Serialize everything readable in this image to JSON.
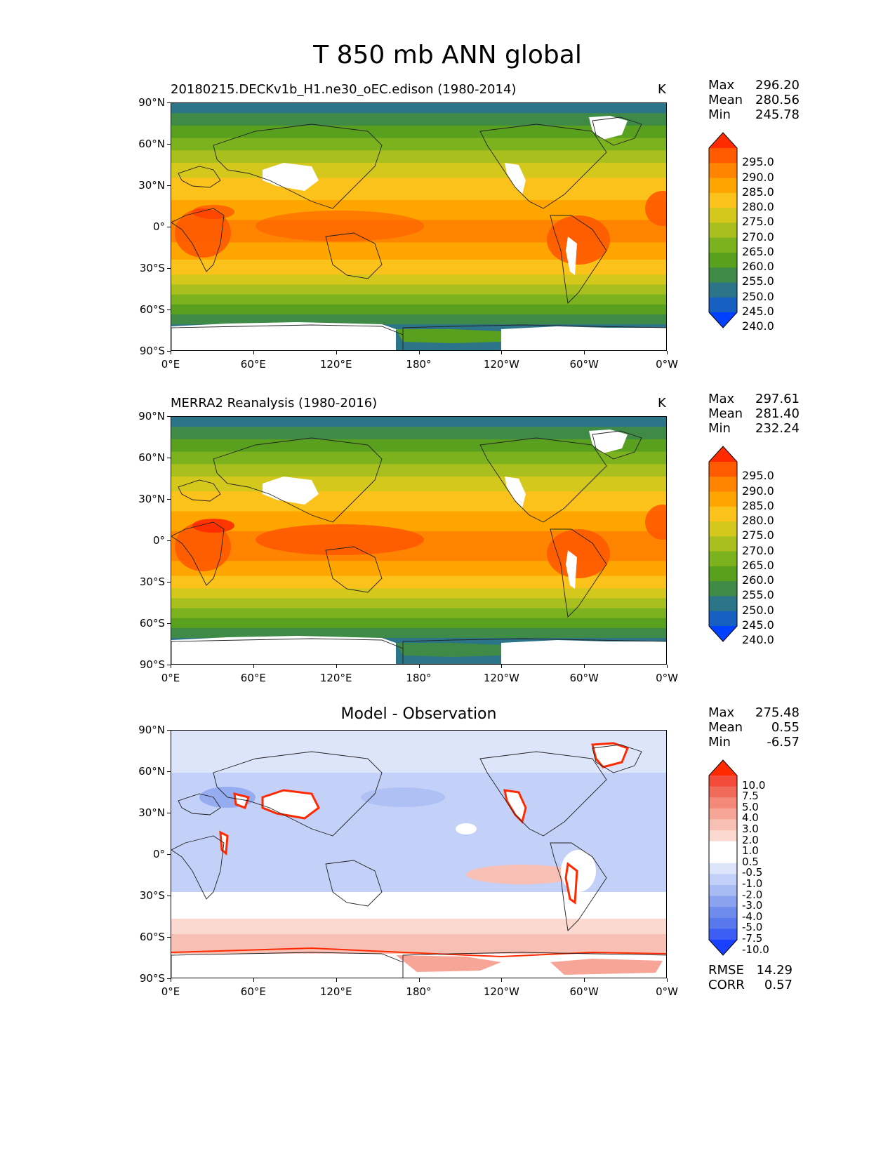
{
  "title": "T 850 mb ANN global",
  "units": "K",
  "lat_ticks": [
    "90°N",
    "60°N",
    "30°N",
    "0°",
    "30°S",
    "60°S",
    "90°S"
  ],
  "lon_ticks": [
    "0°E",
    "60°E",
    "120°E",
    "180°",
    "120°W",
    "60°W",
    "0°W"
  ],
  "panels": [
    {
      "subtitle": "20180215.DECKv1b_H1.ne30_oEC.edison (1980-2014)",
      "stats": {
        "max_label": "Max",
        "max": "296.20",
        "mean_label": "Mean",
        "mean": "280.56",
        "min_label": "Min",
        "min": "245.78"
      },
      "colorbar": [
        "295.0",
        "290.0",
        "285.0",
        "280.0",
        "275.0",
        "270.0",
        "265.0",
        "260.0",
        "255.0",
        "250.0",
        "245.0",
        "240.0"
      ]
    },
    {
      "subtitle": "MERRA2 Reanalysis (1980-2016)",
      "stats": {
        "max_label": "Max",
        "max": "297.61",
        "mean_label": "Mean",
        "mean": "281.40",
        "min_label": "Min",
        "min": "232.24"
      },
      "colorbar": [
        "295.0",
        "290.0",
        "285.0",
        "280.0",
        "275.0",
        "270.0",
        "265.0",
        "260.0",
        "255.0",
        "250.0",
        "245.0",
        "240.0"
      ]
    },
    {
      "subtitle": "Model - Observation",
      "stats": {
        "max_label": "Max",
        "max": "275.48",
        "mean_label": "Mean",
        "mean": "0.55",
        "min_label": "Min",
        "min": "-6.57"
      },
      "colorbar": [
        "10.0",
        "7.5",
        "5.0",
        "4.0",
        "3.0",
        "2.0",
        "1.0",
        "0.5",
        "-0.5",
        "-1.0",
        "-2.0",
        "-3.0",
        "-4.0",
        "-5.0",
        "-7.5",
        "-10.0"
      ],
      "rmse_label": "RMSE",
      "rmse": "14.29",
      "corr_label": "CORR",
      "corr": "0.57"
    }
  ],
  "colors": {
    "temp_scale": [
      "#ff2a00",
      "#ff5a00",
      "#ff8400",
      "#ffa500",
      "#fbc21c",
      "#d4c81d",
      "#a9bf1e",
      "#7cb21e",
      "#58a01e",
      "#3f8a47",
      "#2c7588",
      "#1560c0",
      "#0040ff"
    ],
    "diff_scale": [
      "#ff2a00",
      "#f24b3a",
      "#f06a5a",
      "#f4897a",
      "#f6a597",
      "#f8c0b4",
      "#fbd9d1",
      "#ffffff",
      "#ffffff",
      "#dde5fb",
      "#c3d0f7",
      "#a9bbf3",
      "#8aa2ef",
      "#6f8ced",
      "#5a78ee",
      "#3c5ef4",
      "#1a40ff"
    ]
  }
}
